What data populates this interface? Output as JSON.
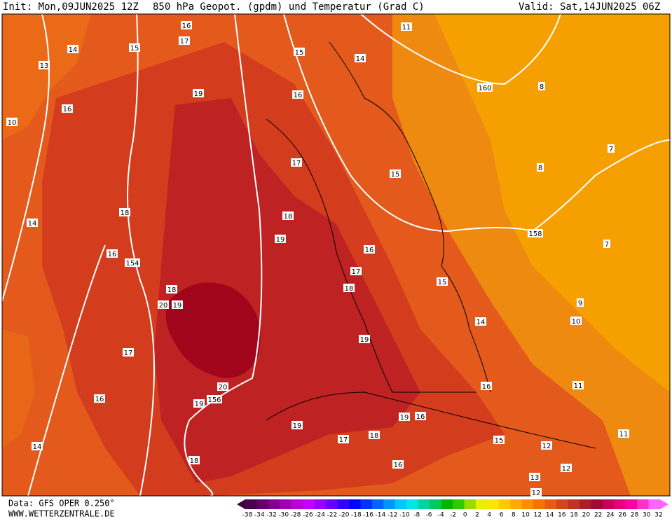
{
  "header": {
    "init": "Init: Mon,09JUN2025 12Z",
    "title": "850 hPa Geopot. (gpdm) und Temperatur (Grad C)",
    "valid": "Valid: Sat,14JUN2025 06Z"
  },
  "contour_labels": [
    16,
    17,
    15,
    14,
    13,
    15,
    14,
    11,
    16,
    19,
    16,
    160,
    8,
    10,
    7,
    8,
    17,
    15,
    18,
    14,
    18,
    158,
    19,
    16,
    7,
    16,
    154,
    17,
    18,
    18,
    15,
    20,
    19,
    9,
    10,
    14,
    19,
    17,
    20,
    16,
    11,
    156,
    19,
    16,
    19,
    16,
    19,
    18,
    17,
    15,
    11,
    14,
    12,
    16,
    12,
    18,
    13,
    12
  ],
  "footer": {
    "data": "Data: GFS OPER 0.250°",
    "site": "WWW.WETTERZENTRALE.DE"
  },
  "legend": {
    "labels": [
      "-38",
      "-34",
      "-32",
      "-30",
      "-28",
      "-26",
      "-24",
      "-22",
      "-20",
      "-18",
      "-16",
      "-14",
      "-12",
      "-10",
      "-8",
      "-6",
      "-4",
      "-2",
      "0",
      "2",
      "4",
      "6",
      "8",
      "10",
      "12",
      "14",
      "16",
      "18",
      "20",
      "22",
      "24",
      "26",
      "28",
      "30",
      "32"
    ]
  }
}
